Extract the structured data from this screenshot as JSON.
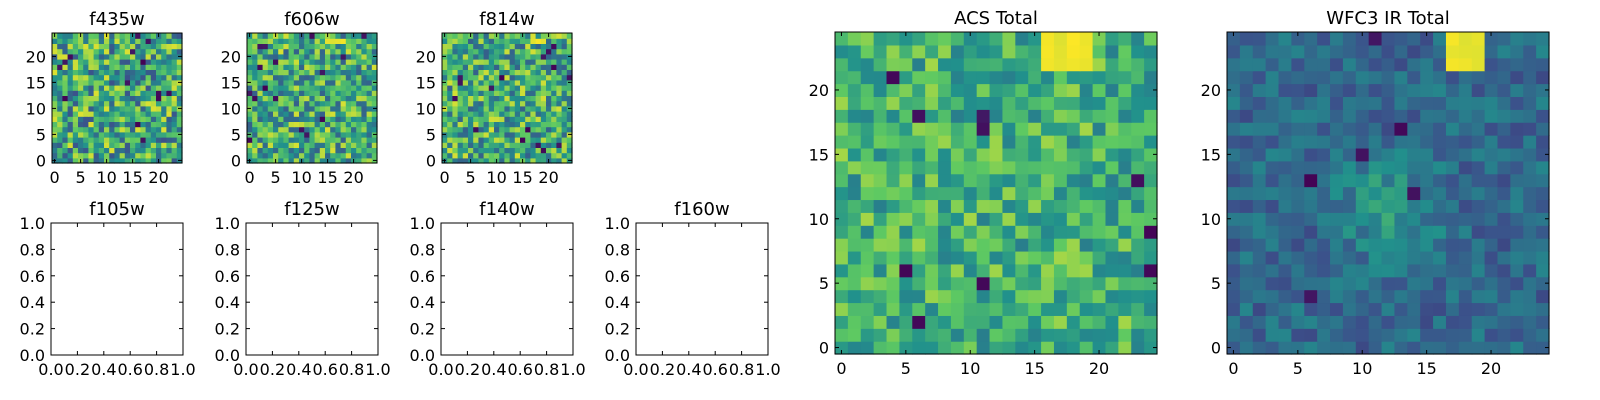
{
  "figure": {
    "background": "#ffffff",
    "colormap": "viridis",
    "colormap_stops": [
      "#440154",
      "#3b528b",
      "#21918c",
      "#5ec962",
      "#fde725"
    ]
  },
  "chart_data": [
    {
      "id": "f435w",
      "type": "heatmap",
      "title": "f435w",
      "grid_size": [
        25,
        25
      ],
      "x_ticks": [
        "0",
        "5",
        "10",
        "15",
        "20"
      ],
      "y_ticks": [
        "0",
        "5",
        "10",
        "15",
        "20"
      ],
      "xlim": [
        -0.5,
        24.5
      ],
      "ylim": [
        -0.5,
        24.5
      ],
      "seed": 11,
      "base": 0.6,
      "noise": 0.35,
      "min_spots": 14,
      "hotspots": []
    },
    {
      "id": "f606w",
      "type": "heatmap",
      "title": "f606w",
      "grid_size": [
        25,
        25
      ],
      "x_ticks": [
        "0",
        "5",
        "10",
        "15",
        "20"
      ],
      "y_ticks": [
        "0",
        "5",
        "10",
        "15",
        "20"
      ],
      "xlim": [
        -0.5,
        24.5
      ],
      "ylim": [
        -0.5,
        24.5
      ],
      "seed": 23,
      "base": 0.62,
      "noise": 0.32,
      "min_spots": 16,
      "hotspots": [
        {
          "x": 16.5,
          "y": 23.2,
          "w": 3,
          "h": 1.5,
          "v": 1.0
        }
      ]
    },
    {
      "id": "f814w",
      "type": "heatmap",
      "title": "f814w",
      "grid_size": [
        25,
        25
      ],
      "x_ticks": [
        "0",
        "5",
        "10",
        "15",
        "20"
      ],
      "y_ticks": [
        "0",
        "5",
        "10",
        "15",
        "20"
      ],
      "xlim": [
        -0.5,
        24.5
      ],
      "ylim": [
        -0.5,
        24.5
      ],
      "seed": 37,
      "base": 0.62,
      "noise": 0.32,
      "min_spots": 16,
      "hotspots": [
        {
          "x": 18,
          "y": 23.2,
          "w": 3,
          "h": 1.5,
          "v": 1.0
        }
      ]
    },
    {
      "id": "f105w",
      "type": "empty",
      "title": "f105w",
      "x_ticks": [
        "0.0",
        "0.2",
        "0.4",
        "0.6",
        "0.8",
        "1.0"
      ],
      "y_ticks": [
        "0.0",
        "0.2",
        "0.4",
        "0.6",
        "0.8",
        "1.0"
      ],
      "xlim": [
        0,
        1
      ],
      "ylim": [
        0,
        1
      ]
    },
    {
      "id": "f125w",
      "type": "empty",
      "title": "f125w",
      "x_ticks": [
        "0.0",
        "0.2",
        "0.4",
        "0.6",
        "0.8",
        "1.0"
      ],
      "y_ticks": [
        "0.0",
        "0.2",
        "0.4",
        "0.6",
        "0.8",
        "1.0"
      ],
      "xlim": [
        0,
        1
      ],
      "ylim": [
        0,
        1
      ]
    },
    {
      "id": "f140w",
      "type": "empty",
      "title": "f140w",
      "x_ticks": [
        "0.0",
        "0.2",
        "0.4",
        "0.6",
        "0.8",
        "1.0"
      ],
      "y_ticks": [
        "0.0",
        "0.2",
        "0.4",
        "0.6",
        "0.8",
        "1.0"
      ],
      "xlim": [
        0,
        1
      ],
      "ylim": [
        0,
        1
      ]
    },
    {
      "id": "f160w",
      "type": "empty",
      "title": "f160w",
      "x_ticks": [
        "0.0",
        "0.2",
        "0.4",
        "0.6",
        "0.8",
        "1.0"
      ],
      "y_ticks": [
        "0.0",
        "0.2",
        "0.4",
        "0.6",
        "0.8",
        "1.0"
      ],
      "xlim": [
        0,
        1
      ],
      "ylim": [
        0,
        1
      ]
    },
    {
      "id": "acs_total",
      "type": "heatmap",
      "title": "ACS Total",
      "grid_size": [
        25,
        25
      ],
      "x_ticks": [
        "0",
        "5",
        "10",
        "15",
        "20"
      ],
      "y_ticks": [
        "0",
        "5",
        "10",
        "15",
        "20"
      ],
      "xlim": [
        -0.5,
        24.5
      ],
      "ylim": [
        -0.5,
        24.5
      ],
      "seed": 53,
      "base": 0.64,
      "noise": 0.22,
      "min_spots": 12,
      "hotspots": [
        {
          "x": 17.5,
          "y": 23,
          "w": 4,
          "h": 2,
          "v": 1.0
        }
      ]
    },
    {
      "id": "wfc3_ir_total",
      "type": "heatmap",
      "title": "WFC3 IR Total",
      "grid_size": [
        25,
        25
      ],
      "x_ticks": [
        "0",
        "5",
        "10",
        "15",
        "20"
      ],
      "y_ticks": [
        "0",
        "5",
        "10",
        "15",
        "20"
      ],
      "xlim": [
        -0.5,
        24.5
      ],
      "ylim": [
        -0.5,
        24.5
      ],
      "seed": 71,
      "base": 0.34,
      "noise": 0.12,
      "min_spots": 6,
      "blob": {
        "x": 12,
        "y": 11,
        "r": 6,
        "v": 0.22
      },
      "hotspots": [
        {
          "x": 18,
          "y": 23,
          "w": 3,
          "h": 2.5,
          "v": 1.0
        }
      ]
    }
  ]
}
